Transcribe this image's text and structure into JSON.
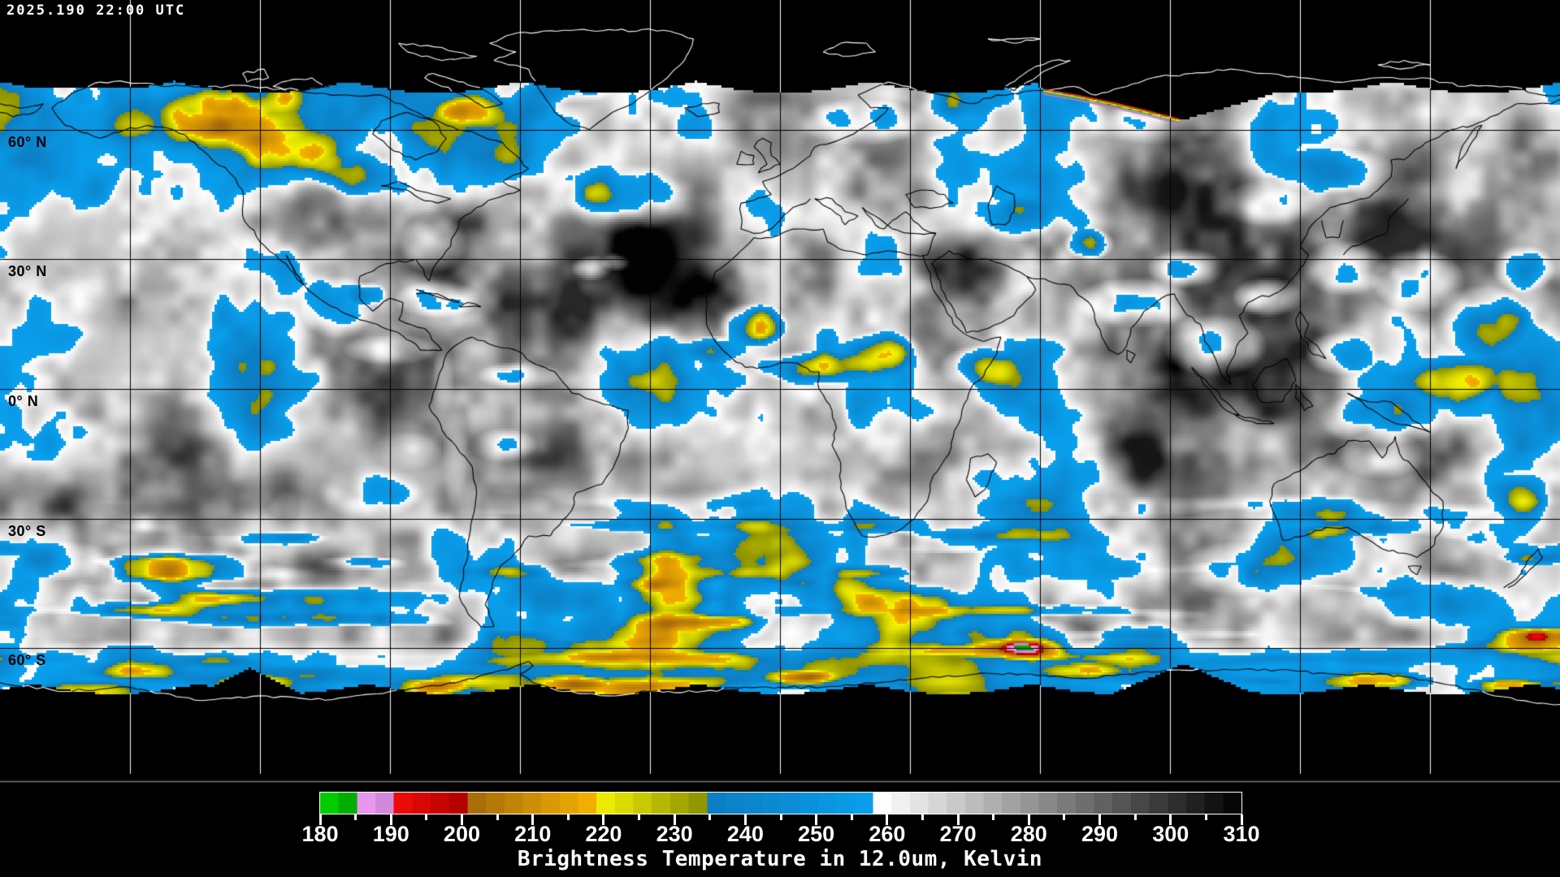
{
  "header": {
    "timestamp": "2025.190 22:00 UTC"
  },
  "map": {
    "projection": "equirectangular",
    "grid_interval_deg": 30,
    "grid_color_over_data": "#000000",
    "grid_color_over_void": "#ffffff",
    "background": "#000000",
    "latitude_labels": [
      {
        "label": "60° N",
        "lat": 60
      },
      {
        "label": "30° N",
        "lat": 30
      },
      {
        "label": "0° N",
        "lat": 0
      },
      {
        "label": "30° S",
        "lat": -30
      },
      {
        "label": "60° S",
        "lat": -60
      }
    ]
  },
  "colorbar": {
    "title": "Brightness Temperature in 12.0um, Kelvin",
    "min": 180,
    "max": 310,
    "major_tick_step": 10,
    "minor_tick_step": 5,
    "tick_labels": [
      "180",
      "190",
      "200",
      "210",
      "220",
      "230",
      "240",
      "250",
      "260",
      "270",
      "280",
      "290",
      "300",
      "310"
    ],
    "label_color": "#ffffff",
    "tick_color": "#ffffff",
    "segments": [
      {
        "from": 180,
        "to": 185,
        "start": "#00dc00",
        "end": "#00a000"
      },
      {
        "from": 185,
        "to": 191,
        "start": "#f6a0f6",
        "end": "#c07fd2"
      },
      {
        "from": 191,
        "to": 200,
        "start": "#f00a0a",
        "end": "#b20000"
      },
      {
        "from": 200,
        "to": 219,
        "start": "#a0660b",
        "end": "#f8b400"
      },
      {
        "from": 219,
        "to": 235,
        "start": "#f6f300",
        "end": "#878c00"
      },
      {
        "from": 235,
        "to": 259,
        "start": "#0d7dc2",
        "end": "#09a1ef"
      },
      {
        "from": 259,
        "to": 310,
        "start": "#ffffff",
        "end": "#000000"
      }
    ]
  }
}
